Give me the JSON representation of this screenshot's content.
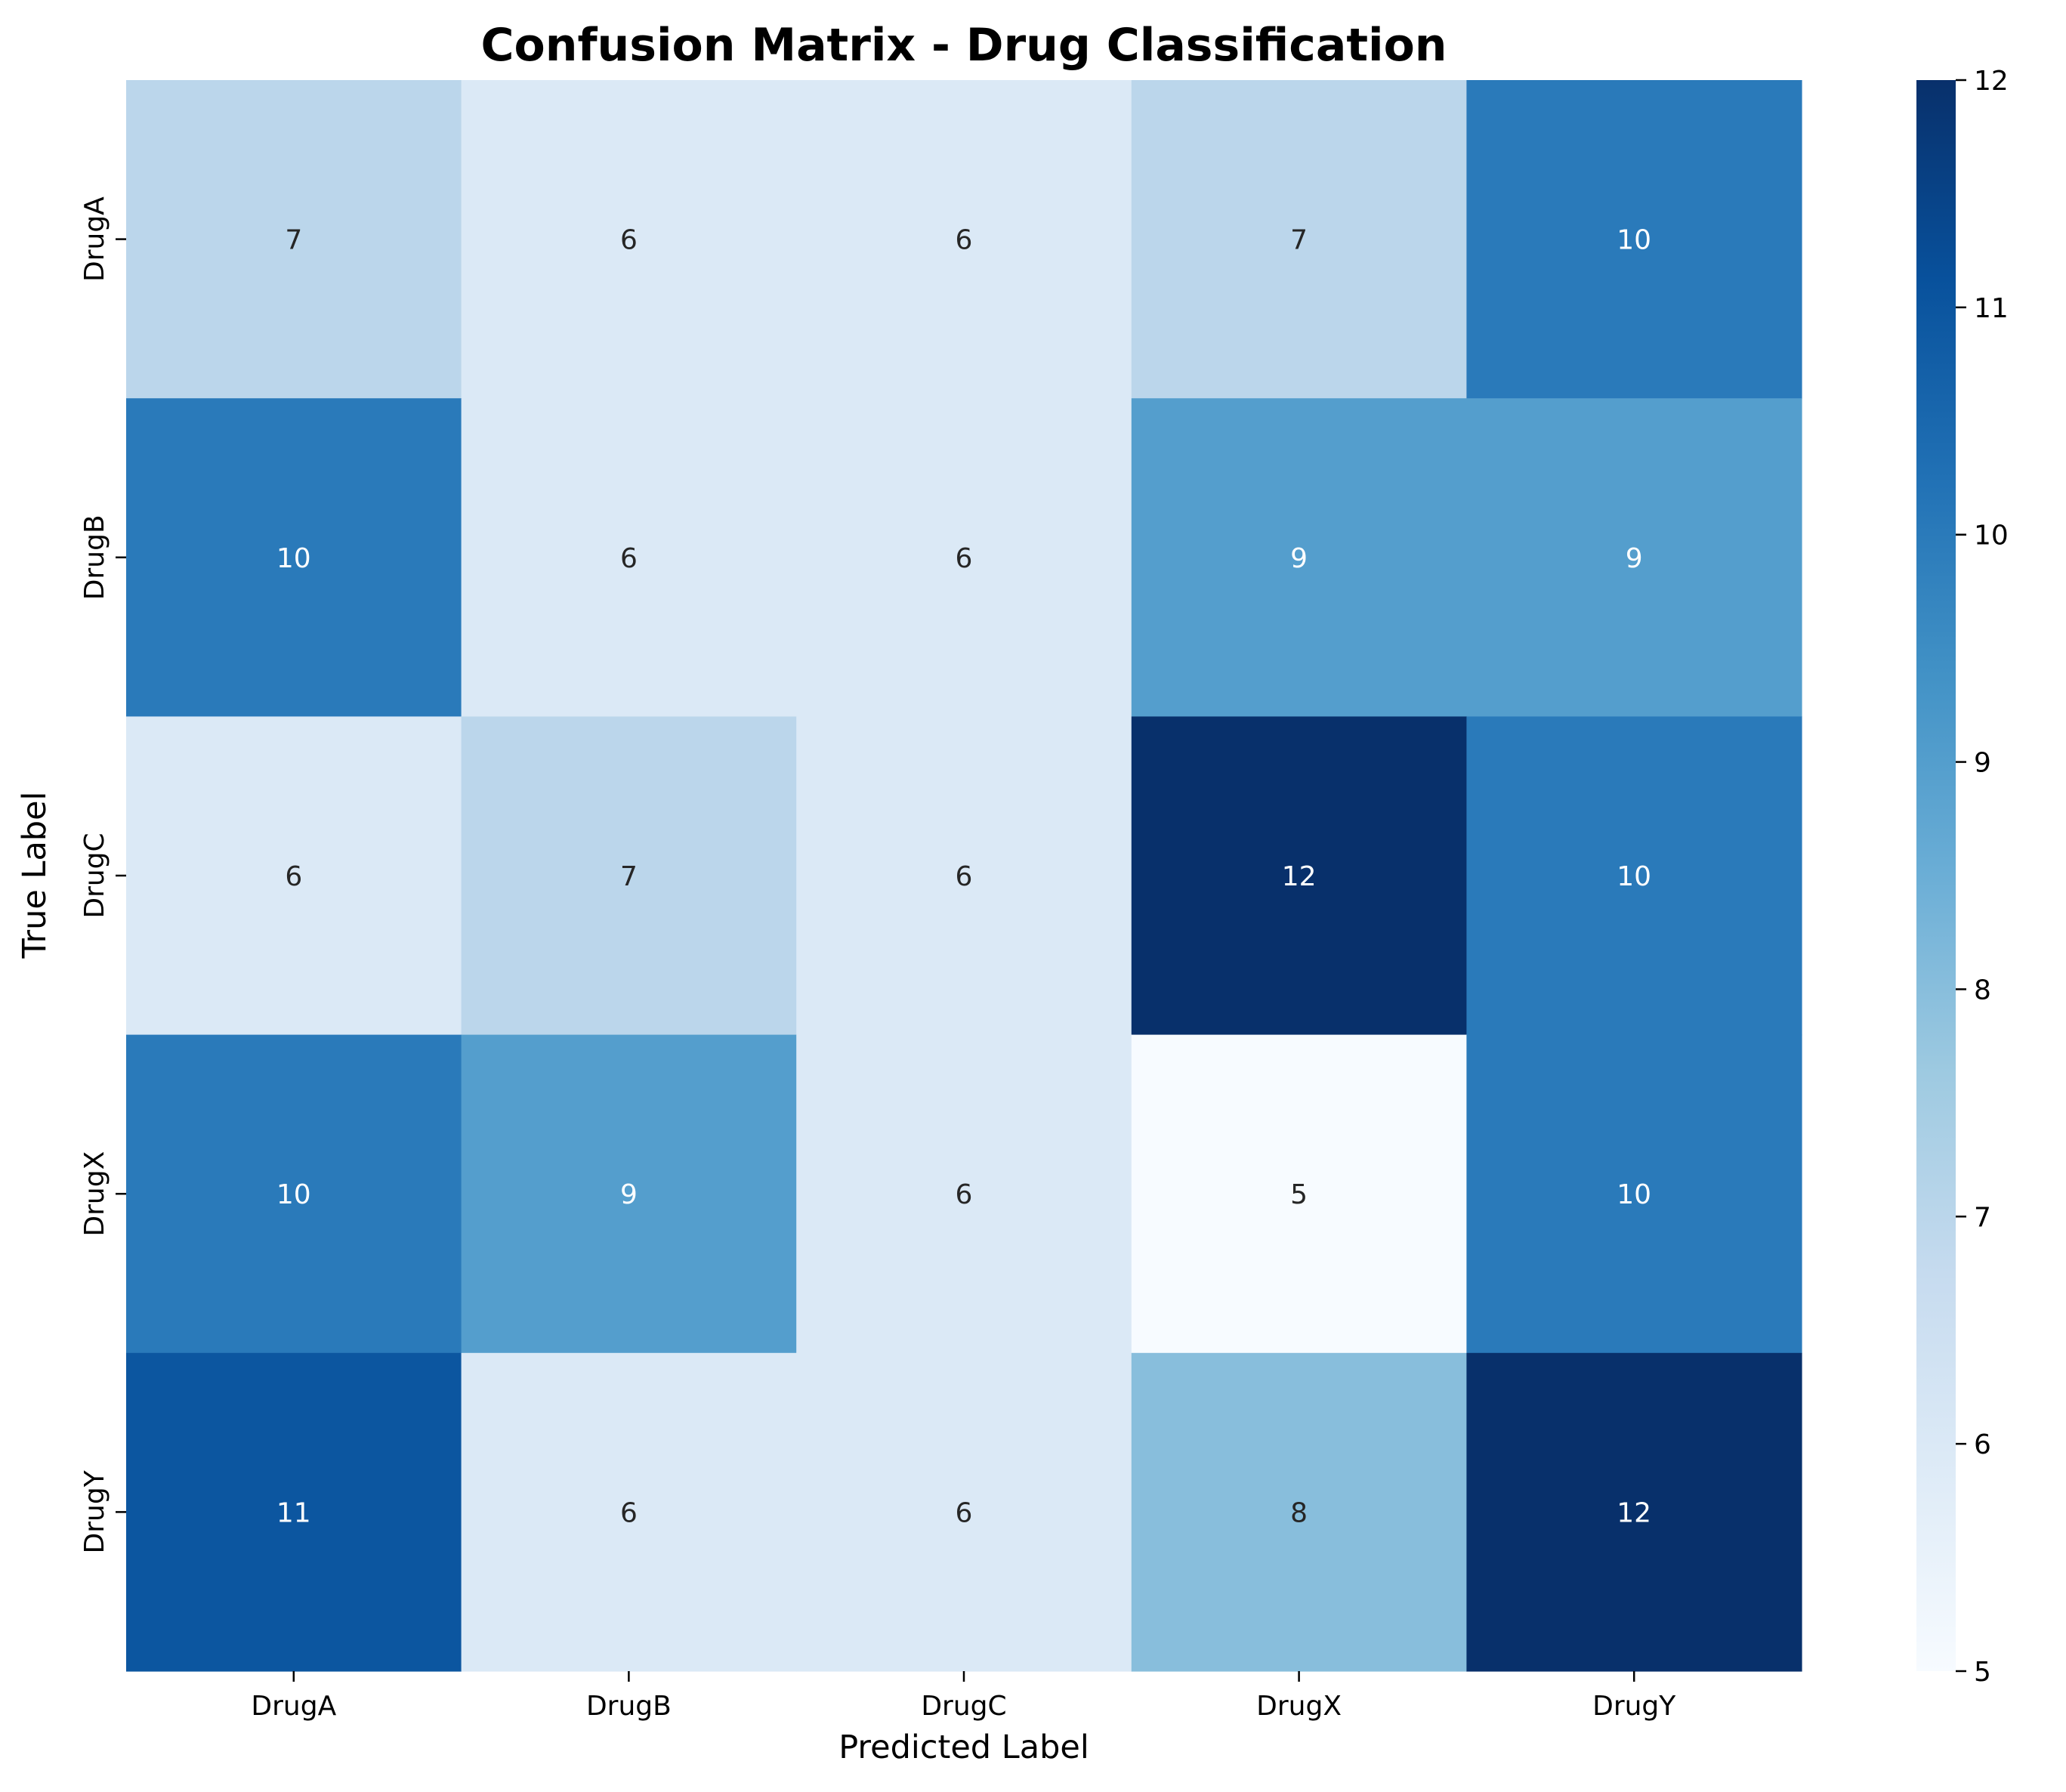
{
  "chart_data": {
    "type": "heatmap",
    "title": "Confusion Matrix - Drug Classification",
    "xlabel": "Predicted Label",
    "ylabel": "True Label",
    "x_categories": [
      "DrugA",
      "DrugB",
      "DrugC",
      "DrugX",
      "DrugY"
    ],
    "y_categories": [
      "DrugA",
      "DrugB",
      "DrugC",
      "DrugX",
      "DrugY"
    ],
    "values": [
      [
        7,
        6,
        6,
        7,
        10
      ],
      [
        10,
        6,
        6,
        9,
        9
      ],
      [
        6,
        7,
        6,
        12,
        10
      ],
      [
        10,
        9,
        6,
        5,
        10
      ],
      [
        11,
        6,
        6,
        8,
        12
      ]
    ],
    "colormap": "Blues",
    "colorbar": {
      "min": 5,
      "max": 12,
      "ticks": [
        5,
        6,
        7,
        8,
        9,
        10,
        11,
        12
      ]
    },
    "colors": {
      "low": "#f7fbff",
      "high": "#08306b",
      "text_dark": "#262626",
      "text_light": "#ffffff"
    }
  }
}
